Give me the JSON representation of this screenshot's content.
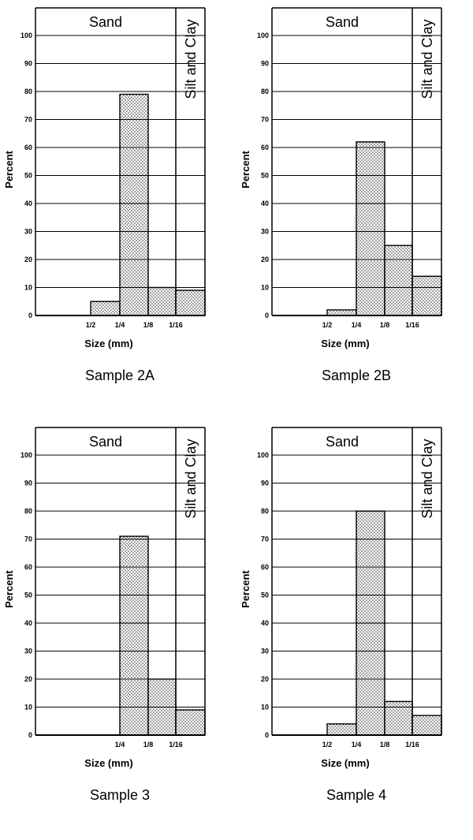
{
  "chart_data": [
    {
      "type": "bar",
      "title": "Sample 2A",
      "xlabel": "Size (mm)",
      "ylabel": "Percent",
      "ylim": [
        0,
        110
      ],
      "yticks": [
        0,
        10,
        20,
        30,
        40,
        50,
        60,
        70,
        80,
        90,
        100
      ],
      "bands": [
        "Sand",
        "Silt and Clay"
      ],
      "boundaries": [
        "1/2",
        "1/4",
        "1/8",
        "1/16"
      ],
      "categories": [
        "1/2-1",
        "1/4-1/2",
        "1/8-1/4",
        "1/16-1/8",
        "<1/16"
      ],
      "values": [
        0,
        5,
        79,
        10,
        9
      ]
    },
    {
      "type": "bar",
      "title": "Sample 2B",
      "xlabel": "Size (mm)",
      "ylabel": "Percent",
      "ylim": [
        0,
        110
      ],
      "yticks": [
        0,
        10,
        20,
        30,
        40,
        50,
        60,
        70,
        80,
        90,
        100
      ],
      "bands": [
        "Sand",
        "Silt and Clay"
      ],
      "boundaries": [
        "1/2",
        "1/4",
        "1/8",
        "1/16"
      ],
      "categories": [
        "1/2-1",
        "1/4-1/2",
        "1/8-1/4",
        "1/16-1/8",
        "<1/16"
      ],
      "values": [
        0,
        2,
        62,
        25,
        14
      ]
    },
    {
      "type": "bar",
      "title": "Sample 3",
      "xlabel": "Size (mm)",
      "ylabel": "Percent",
      "ylim": [
        0,
        110
      ],
      "yticks": [
        0,
        10,
        20,
        30,
        40,
        50,
        60,
        70,
        80,
        90,
        100
      ],
      "bands": [
        "Sand",
        "Silt and Clay"
      ],
      "boundaries": [
        "1/4",
        "1/8",
        "1/16"
      ],
      "categories": [
        "1/2-1",
        "1/4-1/2",
        "1/8-1/4",
        "1/16-1/8",
        "<1/16"
      ],
      "values": [
        0,
        0,
        71,
        20,
        9
      ]
    },
    {
      "type": "bar",
      "title": "Sample 4",
      "xlabel": "Size (mm)",
      "ylabel": "Percent",
      "ylim": [
        0,
        110
      ],
      "yticks": [
        0,
        10,
        20,
        30,
        40,
        50,
        60,
        70,
        80,
        90,
        100
      ],
      "bands": [
        "Sand",
        "Silt and Clay"
      ],
      "boundaries": [
        "1/2",
        "1/4",
        "1/8",
        "1/16"
      ],
      "categories": [
        "1/2-1",
        "1/4-1/2",
        "1/8-1/4",
        "1/16-1/8",
        "<1/16"
      ],
      "values": [
        0,
        4,
        80,
        12,
        7
      ]
    }
  ]
}
